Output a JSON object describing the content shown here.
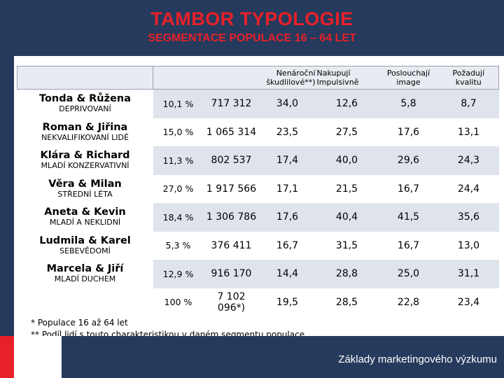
{
  "header": {
    "title": "TAMBOR TYPOLOGIE",
    "subtitle": "SEGMENTACE POPULACE 16 – 64 LET"
  },
  "table": {
    "columns": {
      "pair_left": [
        "Nenároční",
        "škudlilové**)"
      ],
      "pair_right": [
        "Nakupují",
        "Impulsivně"
      ],
      "posl": [
        "Poslouchají",
        "image"
      ],
      "poz": [
        "Požadují",
        "kvalitu"
      ]
    },
    "rows": [
      {
        "name": "Tonda & Růžena",
        "label": "DEPRIVOVANÍ",
        "share": "10,1 %",
        "count": "717 312",
        "nenarocni": "34,0",
        "impulsivne": "12,6",
        "image": "5,8",
        "kvalita": "8,7"
      },
      {
        "name": "Roman & Jiřina",
        "label": "NEKVALIFIKOVANÍ LIDÉ",
        "share": "15,0 %",
        "count": "1 065 314",
        "nenarocni": "23,5",
        "impulsivne": "27,5",
        "image": "17,6",
        "kvalita": "13,1"
      },
      {
        "name": "Klára & Richard",
        "label": "MLADÍ KONZERVATIVNÍ",
        "share": "11,3 %",
        "count": "802 537",
        "nenarocni": "17,4",
        "impulsivne": "40,0",
        "image": "29,6",
        "kvalita": "24,3"
      },
      {
        "name": "Věra & Milan",
        "label": "STŘEDNÍ LÉTA",
        "share": "27,0 %",
        "count": "1 917 566",
        "nenarocni": "17,1",
        "impulsivne": "21,5",
        "image": "16,7",
        "kvalita": "24,4"
      },
      {
        "name": "Aneta & Kevin",
        "label": "MLADÍ A NEKLIDNÍ",
        "share": "18,4 %",
        "count": "1 306 786",
        "nenarocni": "17,6",
        "impulsivne": "40,4",
        "image": "41,5",
        "kvalita": "35,6"
      },
      {
        "name": "Ludmila & Karel",
        "label": "SEBEVĚDOMÍ",
        "share": "5,3 %",
        "count": "376 411",
        "nenarocni": "16,7",
        "impulsivne": "31,5",
        "image": "16,7",
        "kvalita": "13,0"
      },
      {
        "name": "Marcela & Jiří",
        "label": "MLADÍ DUCHEM",
        "share": "12,9 %",
        "count": "916 170",
        "nenarocni": "14,4",
        "impulsivne": "28,8",
        "image": "25,0",
        "kvalita": "31,1"
      }
    ],
    "total": {
      "share": "100 %",
      "count": "7 102 096*)",
      "nenarocni": "19,5",
      "impulsivne": "28,5",
      "image": "22,8",
      "kvalita": "23,4"
    }
  },
  "notes": [
    "*  Populace 16 až 64 let",
    "** Podíl lidí s touto charakteristikou v daném segmentu populace"
  ],
  "footer": {
    "label": "Základy marketingového výzkumu"
  },
  "colors": {
    "navy": "#253a5c",
    "red": "#e8202a",
    "row_shade": "#dfe3ec"
  }
}
